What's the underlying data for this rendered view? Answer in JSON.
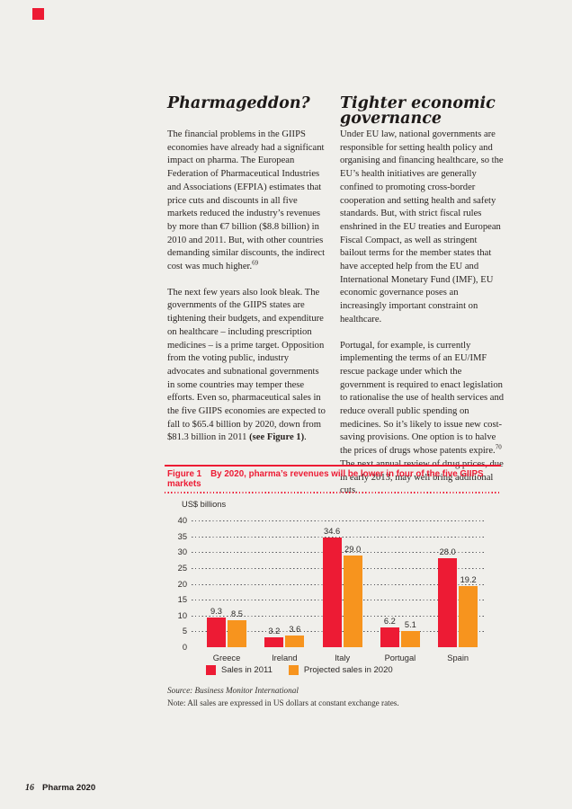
{
  "brand": {
    "red": "#ed1b34",
    "orange": "#f7941e",
    "page_background": "#f0efeb"
  },
  "left_column": {
    "heading": "Pharmageddon?",
    "para1": "The financial problems in the GIIPS economies have already had a significant impact on pharma. The European Federation of Pharmaceutical Industries and Associations (EFPIA) estimates that price cuts and discounts in all five markets reduced the industry’s revenues by more than €7 billion ($8.8 billion) in 2010 and 2011. But, with other countries demanding similar discounts, the indirect cost was much higher.",
    "para1_footnote": "69",
    "para2_main": "The next few years also look bleak. The governments of the GIIPS states are tightening their budgets, and expenditure on healthcare – including prescription medicines – is a prime target. Opposition from the voting public, industry advocates and subnational governments in some countries may temper these efforts. Even so, pharmaceutical sales in the five GIIPS economies are expected to fall to $65.4 billion by 2020, down from $81.3 billion in 2011 ",
    "para2_bold": "(see Figure 1)",
    "para2_period": "."
  },
  "right_column": {
    "heading": "Tighter economic governance",
    "para1": "Under EU law, national governments are responsible for setting health policy and organising and financing healthcare, so the EU’s health initiatives are generally confined to promoting cross-border cooperation and setting health and safety standards. But, with strict fiscal rules enshrined in the EU treaties and European Fiscal Compact, as well as stringent bailout terms for the member states that have accepted help from the EU and International Monetary Fund (IMF), EU economic governance poses an increasingly important constraint on healthcare.",
    "para2_a": "Portugal, for example, is currently implementing the terms of an EU/IMF rescue package under which the government is required to enact legislation to rationalise the use of health services and reduce overall public spending on medicines. So it’s likely to issue new cost-saving provisions. One option is to halve the prices of drugs whose patents expire.",
    "para2_footnote": "70",
    "para2_b": " The next annual review of drug prices, due in early 2013, may well bring additional cuts."
  },
  "figure": {
    "label": "Figure 1",
    "title": "By 2020, pharma’s revenues will be lower in four of the five GIIPS markets"
  },
  "chart_data": {
    "type": "bar",
    "title": "By 2020, pharma’s revenues will be lower in four of the five GIIPS markets",
    "unit_label": "US$ billions",
    "categories": [
      "Greece",
      "Ireland",
      "Italy",
      "Portugal",
      "Spain"
    ],
    "series": [
      {
        "name": "Sales in 2011",
        "color": "#ed1b34",
        "values": [
          9.3,
          3.2,
          34.6,
          6.2,
          28.0
        ]
      },
      {
        "name": "Projected sales in 2020",
        "color": "#f7941e",
        "values": [
          8.5,
          3.6,
          29.0,
          5.1,
          19.2
        ]
      }
    ],
    "ylim": [
      0,
      40
    ],
    "yticks": [
      0,
      5,
      10,
      15,
      20,
      25,
      30,
      35,
      40
    ],
    "grid": "horizontal-dotted",
    "legend_position": "bottom"
  },
  "notes": {
    "source": "Source: Business Monitor International",
    "note": "Note: All sales are expressed in US dollars at constant exchange rates."
  },
  "footer": {
    "page_number": "16",
    "report_title": "Pharma 2020"
  }
}
